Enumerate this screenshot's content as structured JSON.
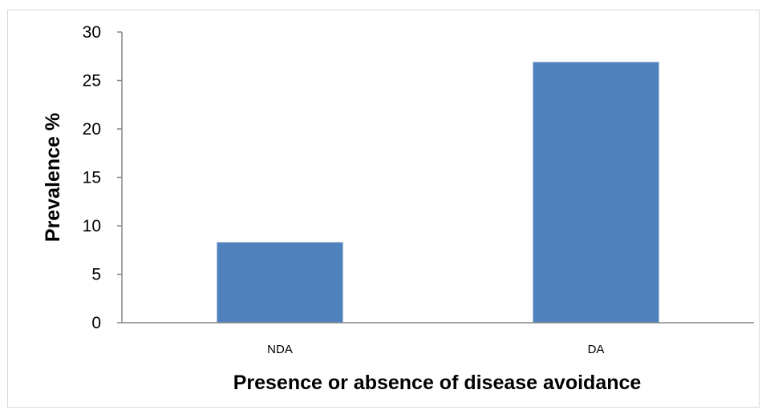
{
  "chart_data": {
    "type": "bar",
    "categories": [
      "NDA",
      "DA"
    ],
    "values": [
      8.3,
      26.9
    ],
    "title": "",
    "xlabel": "Presence or absence of disease avoidance",
    "ylabel": "Prevalence %",
    "ylim": [
      0,
      30
    ],
    "yticks": [
      "0",
      "5",
      "10",
      "15",
      "20",
      "25",
      "30"
    ],
    "bar_color": "#4f81bd",
    "axis_color": "#868686",
    "grid": false,
    "legend": "none"
  }
}
